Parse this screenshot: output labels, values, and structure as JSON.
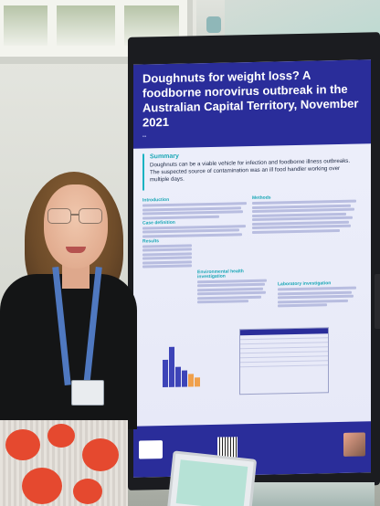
{
  "poster": {
    "title": "Doughnuts for weight loss? A foodborne norovirus outbreak in the Australian Capital Territory, November 2021",
    "summary_heading": "Summary",
    "summary_text": "Doughnuts can be a viable vehicle for infection and foodborne illness outbreaks. The suspected source of contamination was an ill food handler working over multiple days.",
    "introduction_heading": "Introduction",
    "case_definition_heading": "Case definition",
    "results_heading": "Results",
    "methods_heading": "Methods",
    "env_heading": "Environmental health investigation",
    "lab_heading": "Laboratory investigation"
  }
}
